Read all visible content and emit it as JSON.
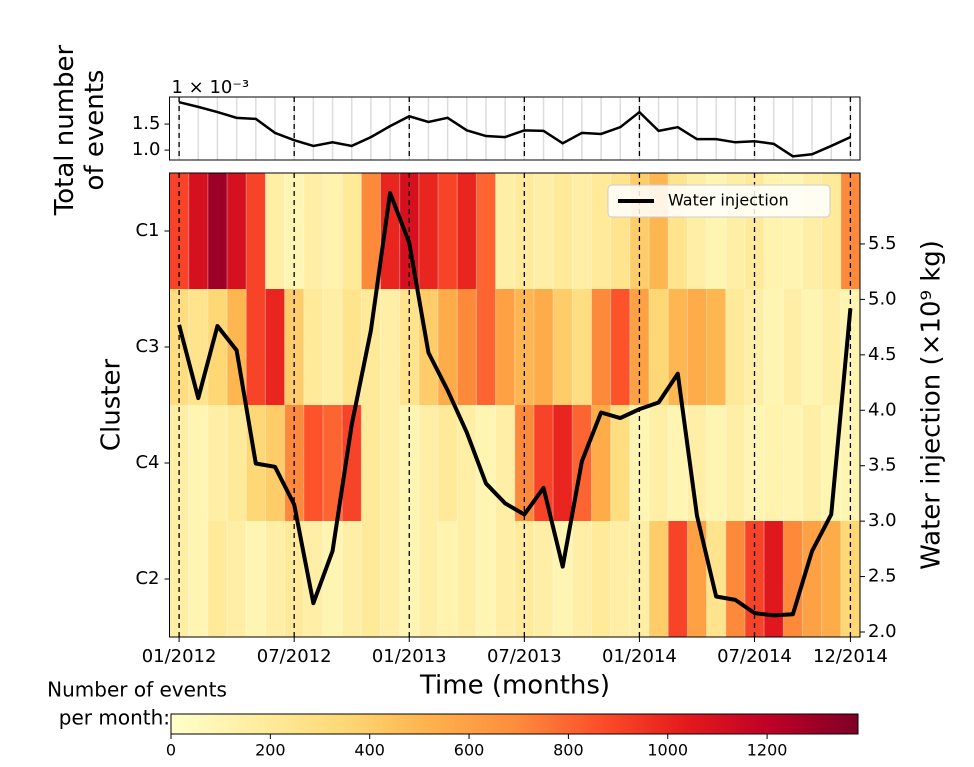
{
  "chart_data": [
    {
      "type": "line",
      "ylabel_lines": [
        "Total number",
        "of events"
      ],
      "offset_label": "1 × 10⁻³",
      "values": [
        1.92,
        1.83,
        1.73,
        1.62,
        1.6,
        1.33,
        1.19,
        1.08,
        1.15,
        1.08,
        1.25,
        1.46,
        1.65,
        1.54,
        1.62,
        1.38,
        1.27,
        1.25,
        1.38,
        1.37,
        1.13,
        1.33,
        1.31,
        1.44,
        1.73,
        1.37,
        1.44,
        1.21,
        1.21,
        1.15,
        1.17,
        1.12,
        0.88,
        0.92,
        1.08,
        1.25
      ],
      "color": "#000000",
      "ylim": [
        0.81,
        2.02
      ],
      "yticks": [
        {
          "value": 1.0,
          "label": "1.0"
        },
        {
          "value": 1.5,
          "label": "1.5"
        }
      ]
    },
    {
      "type": "heatmap",
      "xlabel": "Time (months)",
      "ylabel": "Cluster",
      "categories": [
        "01/2012",
        null,
        null,
        null,
        null,
        null,
        "07/2012",
        null,
        null,
        null,
        null,
        null,
        "01/2013",
        null,
        null,
        null,
        null,
        null,
        "07/2013",
        null,
        null,
        null,
        null,
        null,
        "01/2014",
        null,
        null,
        null,
        null,
        null,
        "07/2014",
        null,
        null,
        null,
        null,
        "12/2014"
      ],
      "rows": [
        "C1",
        "C3",
        "C4",
        "C2"
      ],
      "values": [
        [
          900,
          1100,
          1300,
          1100,
          900,
          150,
          100,
          150,
          120,
          200,
          700,
          1000,
          1100,
          1000,
          900,
          1000,
          800,
          150,
          200,
          150,
          200,
          150,
          200,
          250,
          400,
          500,
          250,
          150,
          100,
          150,
          200,
          120,
          100,
          150,
          200,
          700
        ],
        [
          300,
          250,
          350,
          500,
          900,
          1000,
          400,
          200,
          150,
          250,
          200,
          150,
          250,
          400,
          550,
          700,
          800,
          600,
          500,
          550,
          400,
          300,
          700,
          850,
          600,
          350,
          500,
          550,
          500,
          200,
          150,
          100,
          150,
          100,
          150,
          100
        ],
        [
          150,
          100,
          150,
          200,
          350,
          400,
          700,
          850,
          800,
          900,
          200,
          150,
          100,
          150,
          200,
          150,
          100,
          150,
          700,
          900,
          1000,
          800,
          550,
          300,
          100,
          150,
          100,
          150,
          100,
          150,
          100,
          120,
          100,
          150,
          100,
          100
        ],
        [
          150,
          100,
          200,
          150,
          100,
          150,
          200,
          150,
          100,
          150,
          200,
          150,
          100,
          150,
          120,
          150,
          100,
          150,
          200,
          150,
          100,
          150,
          200,
          150,
          150,
          400,
          900,
          600,
          250,
          700,
          900,
          1050,
          700,
          600,
          550,
          350
        ]
      ],
      "colormap": "YlOrRd",
      "colorbar": {
        "label_lines": [
          "Number of events",
          "per month:"
        ],
        "clim": [
          0,
          1383
        ],
        "ticks": [
          0,
          200,
          400,
          600,
          800,
          1000,
          1200
        ]
      },
      "series": [
        {
          "name": "Water injection",
          "color": "#000000",
          "axis": "y2",
          "values": [
            4.77,
            4.11,
            4.76,
            4.54,
            3.52,
            3.49,
            3.15,
            2.26,
            2.73,
            3.87,
            4.72,
            5.96,
            5.51,
            4.52,
            4.18,
            3.8,
            3.34,
            3.16,
            3.06,
            3.3,
            2.59,
            3.54,
            3.98,
            3.93,
            4.01,
            4.07,
            4.33,
            3.05,
            2.32,
            2.29,
            2.17,
            2.15,
            2.16,
            2.73,
            3.06,
            4.92
          ]
        }
      ],
      "y2label": "Water injection (×10⁹ kg)",
      "y2lim": [
        1.955,
        6.14
      ],
      "y2ticks": [
        {
          "value": 2.0,
          "label": "2.0"
        },
        {
          "value": 2.5,
          "label": "2.5"
        },
        {
          "value": 3.0,
          "label": "3.0"
        },
        {
          "value": 3.5,
          "label": "3.5"
        },
        {
          "value": 4.0,
          "label": "4.0"
        },
        {
          "value": 4.5,
          "label": "4.5"
        },
        {
          "value": 5.0,
          "label": "5.0"
        },
        {
          "value": 5.5,
          "label": "5.5"
        }
      ],
      "legend": "upper right"
    }
  ]
}
